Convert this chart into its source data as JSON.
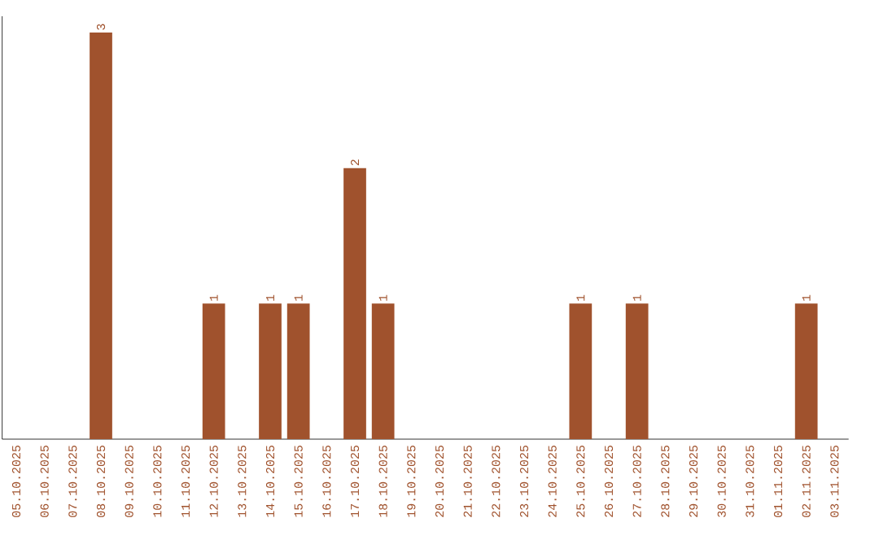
{
  "chart_data": {
    "type": "bar",
    "categories": [
      "05.10.2025",
      "06.10.2025",
      "07.10.2025",
      "08.10.2025",
      "09.10.2025",
      "10.10.2025",
      "11.10.2025",
      "12.10.2025",
      "13.10.2025",
      "14.10.2025",
      "15.10.2025",
      "16.10.2025",
      "17.10.2025",
      "18.10.2025",
      "19.10.2025",
      "20.10.2025",
      "21.10.2025",
      "22.10.2025",
      "23.10.2025",
      "24.10.2025",
      "25.10.2025",
      "26.10.2025",
      "27.10.2025",
      "28.10.2025",
      "29.10.2025",
      "30.10.2025",
      "31.10.2025",
      "01.11.2025",
      "02.11.2025",
      "03.11.2025"
    ],
    "values": [
      0,
      0,
      0,
      3,
      0,
      0,
      0,
      1,
      0,
      1,
      1,
      0,
      2,
      1,
      0,
      0,
      0,
      0,
      0,
      0,
      1,
      0,
      1,
      0,
      0,
      0,
      0,
      0,
      1,
      0
    ],
    "value_labels": [
      null,
      null,
      null,
      "3",
      null,
      null,
      null,
      "1",
      null,
      "1",
      "1",
      null,
      "2",
      "1",
      null,
      null,
      null,
      null,
      null,
      null,
      "1",
      null,
      "1",
      null,
      null,
      null,
      null,
      null,
      "1",
      null
    ],
    "color": "#a0522d"
  }
}
